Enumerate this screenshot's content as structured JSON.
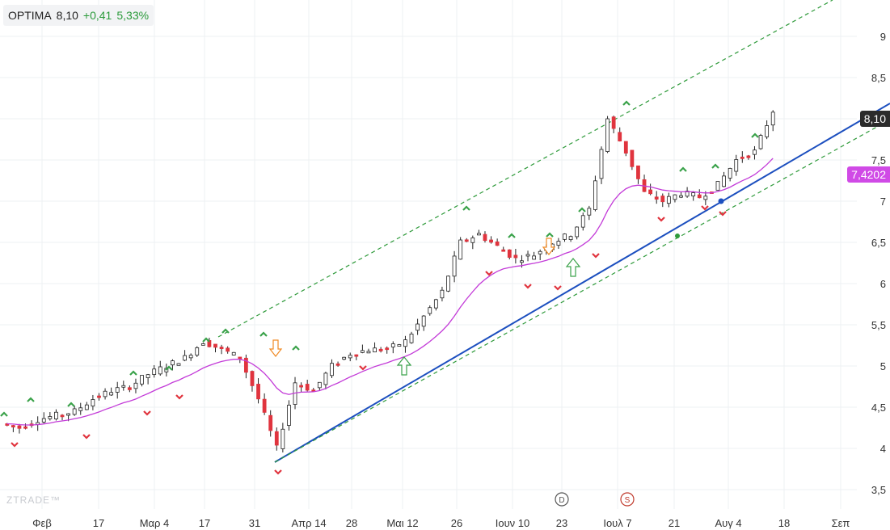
{
  "header": {
    "symbol": "OPTIMA",
    "price": "8,10",
    "change": "+0,41",
    "change_pct": "5,33%"
  },
  "price_tags": {
    "last": "8,10",
    "ma": "7,4202"
  },
  "watermark": "ZTRADE™",
  "markers": [
    "D",
    "S"
  ],
  "colors": {
    "up": "#ffffff",
    "down": "#e0343e",
    "ma": "#c33bd8",
    "trend": "#1c4fbf",
    "channel": "#2e9a3a",
    "up_arrow": "#3aa24a",
    "down_arrow": "#f08a24",
    "tag_last": "#2b2b2b",
    "tag_ma": "#d04ae6"
  },
  "chart_data": {
    "type": "candlestick",
    "y_axis": {
      "ticks": [
        "3,5",
        "4",
        "4,5",
        "5",
        "5,5",
        "6",
        "6,5",
        "7",
        "7,5",
        "8",
        "8,5",
        "9"
      ],
      "range": [
        3.3,
        9.4
      ],
      "side": "right",
      "grid": true
    },
    "x_axis": {
      "tick_labels": [
        "Φεβ",
        "17",
        "Μαρ 4",
        "17",
        "31",
        "Απρ 14",
        "28",
        "Μαι 12",
        "26",
        "Ιουν 10",
        "23",
        "Ιουλ 7",
        "21",
        "Αυγ 4",
        "18",
        "Σεπ"
      ]
    },
    "series": [
      {
        "name": "OPTIMA",
        "close_path": [
          4.3,
          4.25,
          4.35,
          4.4,
          4.45,
          4.6,
          4.7,
          4.75,
          4.9,
          5.0,
          5.1,
          5.3,
          5.2,
          5.1,
          4.6,
          4.0,
          4.8,
          4.7,
          5.0,
          5.15,
          5.2,
          5.2,
          5.3,
          5.6,
          5.9,
          6.5,
          6.6,
          6.45,
          6.3,
          6.35,
          6.5,
          6.6,
          6.9,
          8.0,
          7.6,
          7.1,
          7.0,
          7.1,
          7.05,
          7.2,
          7.5,
          7.6,
          8.1
        ]
      },
      {
        "name": "MA",
        "value": 7.4202
      }
    ],
    "last_price": 8.1
  }
}
